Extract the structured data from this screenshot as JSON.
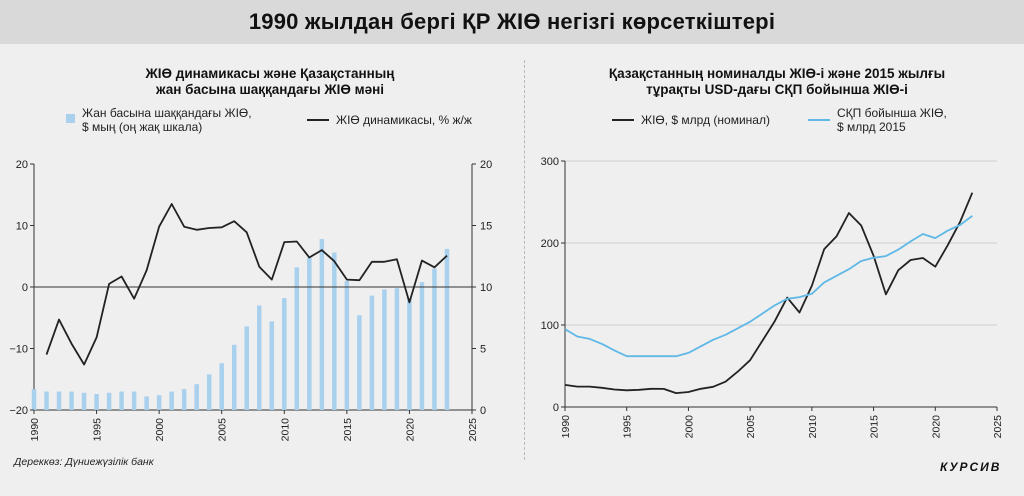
{
  "page": {
    "title": "1990 жылдан бергі ҚР ЖІӨ негізгі көрсеткіштері"
  },
  "source": "Дереккөз: Дүниежүзілік банк",
  "logo": "КУРСИВ",
  "colors": {
    "bar": "#a9d1ee",
    "line_dark": "#222222",
    "line_blue": "#5fb8e6"
  },
  "chart_data": [
    {
      "type": "bar",
      "title_line1": "ЖІӨ динамикасы және Қазақстанның",
      "title_line2": "жан басына шаққандағы ЖІӨ мәні",
      "legend": [
        {
          "line1": "Жан басына шаққандағы ЖІӨ,",
          "line2": "$ мың (оң жақ шкала)"
        },
        {
          "line1": "ЖІӨ динамикасы, % ж/ж"
        }
      ],
      "legend_placement": "top",
      "xlim": [
        1990,
        2025
      ],
      "x_ticks": [
        "1990",
        "1995",
        "2000",
        "2005",
        "2010",
        "2015",
        "2020",
        "2025"
      ],
      "ylim_left": [
        -20,
        20
      ],
      "y_ticks_left": [
        "20",
        "10",
        "0",
        "−10",
        "−20"
      ],
      "ylim_right": [
        0,
        20
      ],
      "y_ticks_right": [
        "20",
        "15",
        "10",
        "5",
        "0"
      ],
      "series": [
        {
          "axis": "right",
          "kind": "bar",
          "x": [
            1990,
            1991,
            1992,
            1993,
            1994,
            1995,
            1996,
            1997,
            1998,
            1999,
            2000,
            2001,
            2002,
            2003,
            2004,
            2005,
            2006,
            2007,
            2008,
            2009,
            2010,
            2011,
            2012,
            2013,
            2014,
            2015,
            2016,
            2017,
            2018,
            2019,
            2020,
            2021,
            2022,
            2023
          ],
          "values": [
            1.7,
            1.5,
            1.5,
            1.5,
            1.4,
            1.3,
            1.4,
            1.5,
            1.5,
            1.1,
            1.2,
            1.5,
            1.7,
            2.1,
            2.9,
            3.8,
            5.3,
            6.8,
            8.5,
            7.2,
            9.1,
            11.6,
            12.4,
            13.9,
            12.8,
            10.5,
            7.7,
            9.3,
            9.8,
            9.9,
            9.1,
            10.4,
            11.5,
            13.1
          ]
        },
        {
          "axis": "left",
          "kind": "line",
          "x": [
            1991,
            1992,
            1993,
            1994,
            1995,
            1996,
            1997,
            1998,
            1999,
            2000,
            2001,
            2002,
            2003,
            2004,
            2005,
            2006,
            2007,
            2008,
            2009,
            2010,
            2011,
            2012,
            2013,
            2014,
            2015,
            2016,
            2017,
            2018,
            2019,
            2020,
            2021,
            2022,
            2023
          ],
          "values": [
            -11,
            -5.3,
            -9.2,
            -12.6,
            -8.2,
            0.5,
            1.7,
            -1.9,
            2.7,
            9.8,
            13.5,
            9.8,
            9.3,
            9.6,
            9.7,
            10.7,
            8.9,
            3.3,
            1.2,
            7.3,
            7.4,
            4.8,
            6.0,
            4.2,
            1.2,
            1.1,
            4.1,
            4.1,
            4.5,
            -2.5,
            4.3,
            3.2,
            5.1
          ]
        }
      ]
    },
    {
      "type": "line",
      "title_line1": "Қазақстанның номиналды ЖІӨ-і және 2015 жылғы",
      "title_line2": "тұрақты USD-дағы СҚП бойынша ЖІӨ-і",
      "legend": [
        {
          "line1": "ЖІӨ, $ млрд (номинал)"
        },
        {
          "line1": "СҚП бойынша ЖІӨ,",
          "line2": "$ млрд 2015"
        }
      ],
      "legend_placement": "top",
      "xlim": [
        1990,
        2025
      ],
      "x_ticks": [
        "1990",
        "1995",
        "2000",
        "2005",
        "2010",
        "2015",
        "2020",
        "2025"
      ],
      "ylim": [
        0,
        300
      ],
      "y_ticks": [
        "300",
        "200",
        "100",
        "0"
      ],
      "series": [
        {
          "color": "#222222",
          "x": [
            1990,
            1991,
            1992,
            1993,
            1994,
            1995,
            1996,
            1997,
            1998,
            1999,
            2000,
            2001,
            2002,
            2003,
            2004,
            2005,
            2006,
            2007,
            2008,
            2009,
            2010,
            2011,
            2012,
            2013,
            2014,
            2015,
            2016,
            2017,
            2018,
            2019,
            2020,
            2021,
            2022,
            2023
          ],
          "values": [
            26.9,
            24.9,
            24.9,
            23.4,
            21.3,
            20.4,
            21.0,
            22.2,
            22.1,
            16.9,
            18.3,
            22.2,
            24.6,
            30.8,
            43.2,
            57.1,
            81.0,
            104.8,
            133.4,
            115.3,
            148.0,
            192.6,
            208.0,
            236.6,
            221.4,
            184.4,
            137.3,
            166.8,
            179.3,
            181.7,
            171.1,
            197.1,
            225.5,
            261.4
          ]
        },
        {
          "color": "#5fb8e6",
          "x": [
            1990,
            1991,
            1992,
            1993,
            1994,
            1995,
            1996,
            1997,
            1998,
            1999,
            2000,
            2001,
            2002,
            2003,
            2004,
            2005,
            2006,
            2007,
            2008,
            2009,
            2010,
            2011,
            2012,
            2013,
            2014,
            2015,
            2016,
            2017,
            2018,
            2019,
            2020,
            2021,
            2022,
            2023
          ],
          "values": [
            95,
            86,
            83,
            77,
            69,
            62,
            62,
            62,
            62,
            62,
            66,
            74,
            82,
            88,
            96,
            104,
            114,
            124,
            132,
            134,
            138,
            152,
            160,
            168,
            178,
            182,
            184,
            192,
            202,
            211,
            206,
            215,
            222,
            233
          ]
        }
      ]
    }
  ]
}
